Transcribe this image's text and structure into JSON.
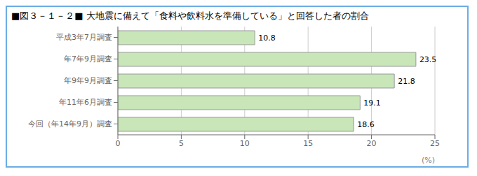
{
  "chart_data": {
    "type": "bar",
    "orientation": "horizontal",
    "title": "■図３－１－２■  大地震に備えて「食料や飲料水を準備している」と回答した者の割合",
    "categories": [
      "平成3年7月調査",
      "年7年9月調査",
      "年9年9月調査",
      "年11年6月調査",
      "今回（年14年9月）調査"
    ],
    "values": [
      10.8,
      23.5,
      21.8,
      19.1,
      18.6
    ],
    "color": "#c8e6b8",
    "xlim": [
      0,
      25
    ],
    "xticks": [
      0,
      5,
      10,
      15,
      20,
      25
    ],
    "xlabel": "(%)",
    "grid": true,
    "data_labels": true
  }
}
